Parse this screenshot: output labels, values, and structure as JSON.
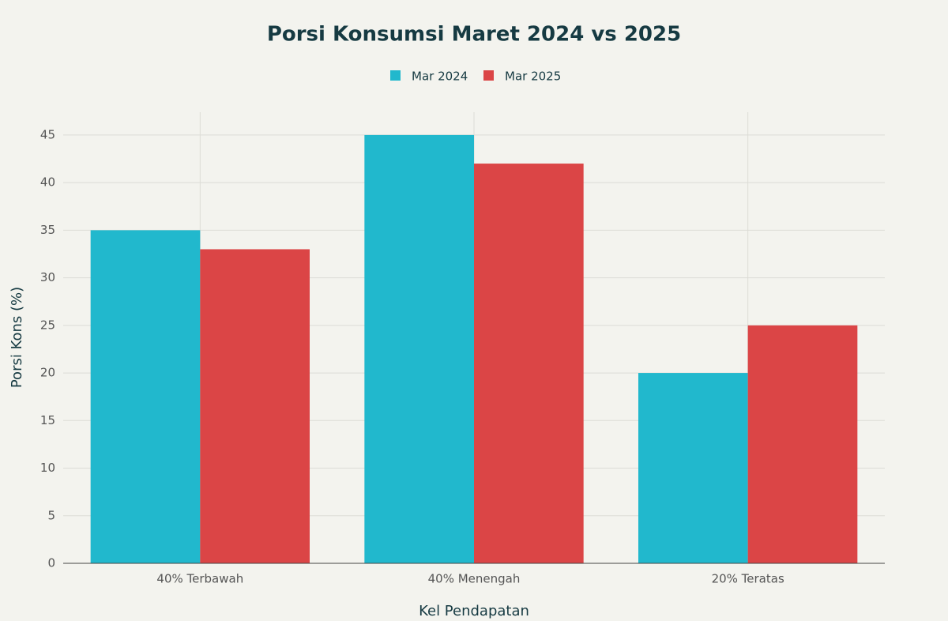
{
  "chart_data": {
    "type": "bar",
    "title": "Porsi Konsumsi Maret 2024 vs 2025",
    "x_label": "Kel Pendapatan",
    "y_label": "Porsi Kons (%)",
    "categories": [
      "40% Terbawah",
      "40% Menengah",
      "20% Teratas"
    ],
    "series": [
      {
        "name": "Mar 2024",
        "color": "#21b8cd",
        "values": [
          35,
          45,
          20
        ]
      },
      {
        "name": "Mar 2025",
        "color": "#db4546",
        "values": [
          33,
          42,
          25
        ]
      }
    ],
    "ylim": [
      0,
      47.4
    ],
    "yticks": [
      0,
      5,
      10,
      15,
      20,
      25,
      30,
      35,
      40,
      45
    ],
    "grid": true
  }
}
